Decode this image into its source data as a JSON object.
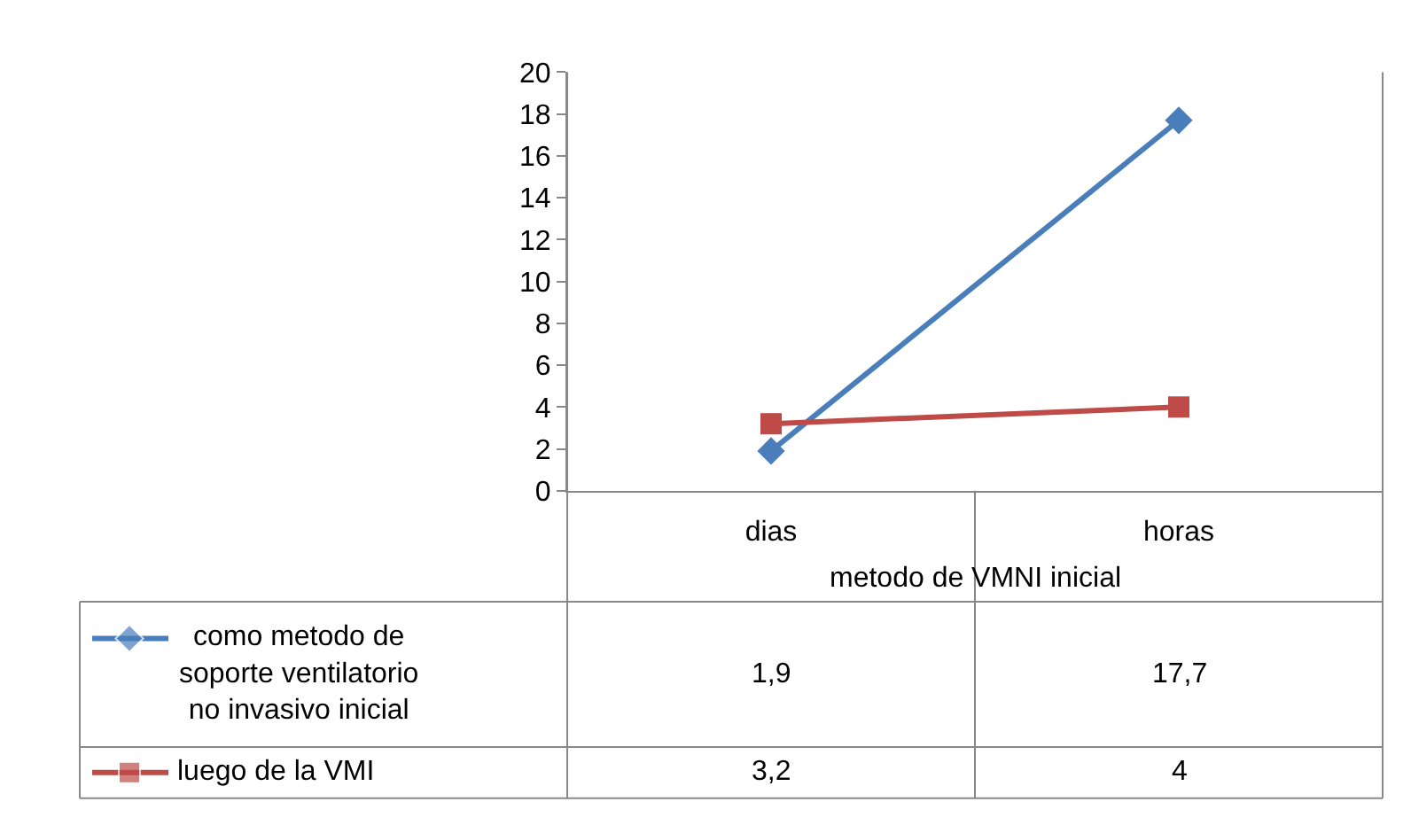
{
  "chart_data": {
    "type": "line",
    "xlabel": "metodo de VMNI inicial",
    "categories": [
      "dias",
      "horas"
    ],
    "series": [
      {
        "name": "como metodo de soporte ventilatorio no invasivo inicial",
        "color": "#4a7ebb",
        "marker": "diamond",
        "values": [
          1.9,
          17.7
        ],
        "value_labels": [
          "1,9",
          "17,7"
        ]
      },
      {
        "name": "luego de la VMI",
        "color": "#be4b48",
        "marker": "square",
        "values": [
          3.2,
          4
        ],
        "value_labels": [
          "3,2",
          "4"
        ]
      }
    ],
    "ylim": [
      0,
      20
    ],
    "yticks": [
      0,
      2,
      4,
      6,
      8,
      10,
      12,
      14,
      16,
      18,
      20
    ],
    "legend": "bottom",
    "line_style": "solid"
  }
}
